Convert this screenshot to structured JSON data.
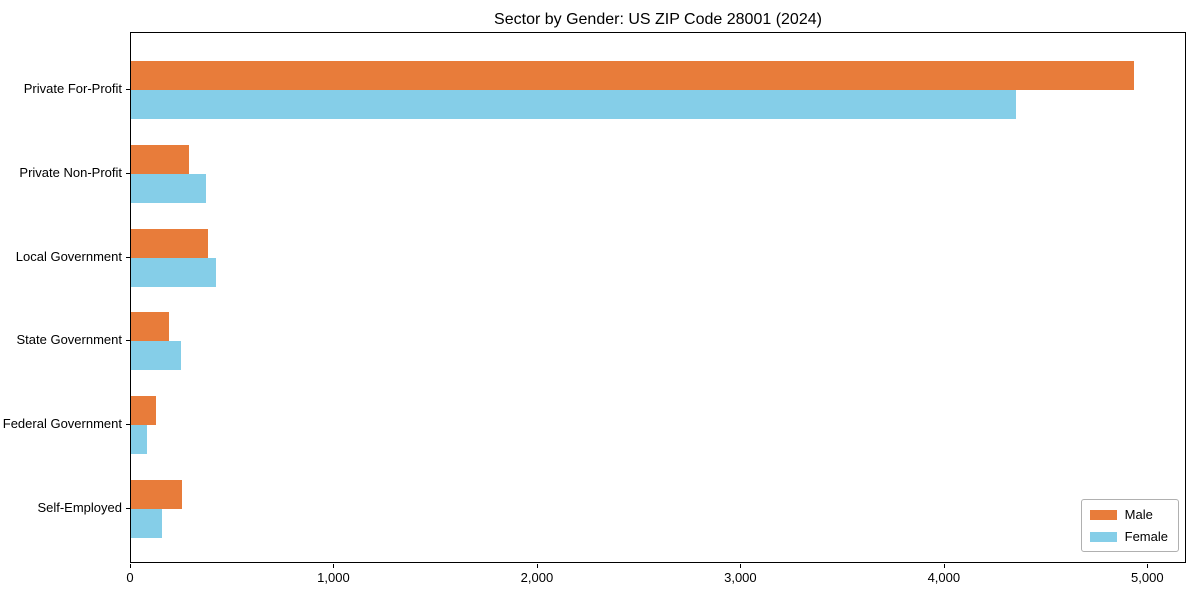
{
  "title": "Sector by Gender: US ZIP Code 28001 (2024)",
  "chart_data": {
    "type": "bar",
    "orientation": "horizontal",
    "title": "Sector by Gender: US ZIP Code 28001 (2024)",
    "xlabel": "",
    "ylabel": "",
    "categories": [
      "Private For-Profit",
      "Private Non-Profit",
      "Local Government",
      "State Government",
      "Federal Government",
      "Self-Employed"
    ],
    "series": [
      {
        "name": "Male",
        "color": "#E87C3A",
        "values": [
          4930,
          285,
          380,
          185,
          125,
          250
        ]
      },
      {
        "name": "Female",
        "color": "#85CEE8",
        "values": [
          4350,
          370,
          420,
          245,
          80,
          150
        ]
      }
    ],
    "xlim": [
      0,
      5190
    ],
    "x_ticks": [
      0,
      1000,
      2000,
      3000,
      4000,
      5000
    ],
    "x_tick_labels": [
      "0",
      "1,000",
      "2,000",
      "3,000",
      "4,000",
      "5,000"
    ],
    "grid": false,
    "legend": {
      "position": "lower right"
    }
  }
}
